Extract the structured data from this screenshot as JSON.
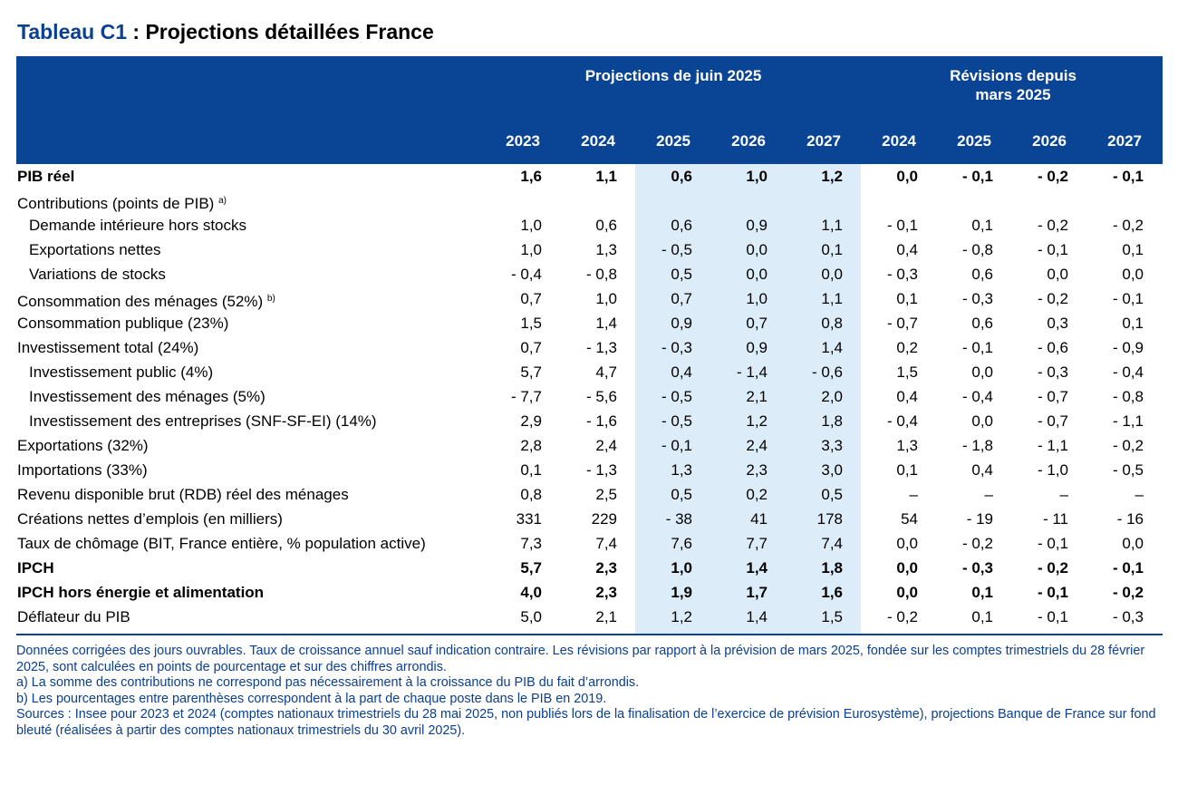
{
  "title": {
    "label": "Tableau C1",
    "separator": " : ",
    "text": "Projections détaillées France"
  },
  "header": {
    "group1": "Projections de juin 2025",
    "group2_line1": "Révisions depuis",
    "group2_line2": "mars 2025",
    "years": [
      "2023",
      "2024",
      "2025",
      "2026",
      "2027",
      "2024",
      "2025",
      "2026",
      "2027"
    ]
  },
  "rows": [
    {
      "label": "PIB réel",
      "note": "",
      "values": [
        "1,6",
        "1,1",
        "0,6",
        "1,0",
        "1,2",
        "0,0",
        "- 0,1",
        "- 0,2",
        "- 0,1"
      ]
    },
    {
      "label": "Contributions (points de PIB)",
      "note": "a)",
      "values": [
        "",
        "",
        "",
        "",
        "",
        "",
        "",
        "",
        ""
      ]
    },
    {
      "label": "Demande intérieure hors stocks",
      "note": "",
      "values": [
        "1,0",
        "0,6",
        "0,6",
        "0,9",
        "1,1",
        "- 0,1",
        "0,1",
        "- 0,2",
        "- 0,2"
      ]
    },
    {
      "label": "Exportations nettes",
      "note": "",
      "values": [
        "1,0",
        "1,3",
        "- 0,5",
        "0,0",
        "0,1",
        "0,4",
        "- 0,8",
        "- 0,1",
        "0,1"
      ]
    },
    {
      "label": "Variations de stocks",
      "note": "",
      "values": [
        "- 0,4",
        "- 0,8",
        "0,5",
        "0,0",
        "0,0",
        "- 0,3",
        "0,6",
        "0,0",
        "0,0"
      ]
    },
    {
      "label": "Consommation des ménages (52%)",
      "note": "b)",
      "values": [
        "0,7",
        "1,0",
        "0,7",
        "1,0",
        "1,1",
        "0,1",
        "- 0,3",
        "- 0,2",
        "- 0,1"
      ]
    },
    {
      "label": "Consommation publique (23%)",
      "note": "",
      "values": [
        "1,5",
        "1,4",
        "0,9",
        "0,7",
        "0,8",
        "- 0,7",
        "0,6",
        "0,3",
        "0,1"
      ]
    },
    {
      "label": "Investissement total (24%)",
      "note": "",
      "values": [
        "0,7",
        "- 1,3",
        "- 0,3",
        "0,9",
        "1,4",
        "0,2",
        "- 0,1",
        "- 0,6",
        "- 0,9"
      ]
    },
    {
      "label": "Investissement public (4%)",
      "note": "",
      "values": [
        "5,7",
        "4,7",
        "0,4",
        "- 1,4",
        "- 0,6",
        "1,5",
        "0,0",
        "- 0,3",
        "- 0,4"
      ]
    },
    {
      "label": "Investissement des ménages (5%)",
      "note": "",
      "values": [
        "- 7,7",
        "- 5,6",
        "- 0,5",
        "2,1",
        "2,0",
        "0,4",
        "- 0,4",
        "- 0,7",
        "- 0,8"
      ]
    },
    {
      "label": "Investissement des entreprises (SNF-SF-EI) (14%)",
      "note": "",
      "values": [
        "2,9",
        "- 1,6",
        "- 0,5",
        "1,2",
        "1,8",
        "- 0,4",
        "0,0",
        "- 0,7",
        "- 1,1"
      ]
    },
    {
      "label": "Exportations (32%)",
      "note": "",
      "values": [
        "2,8",
        "2,4",
        "- 0,1",
        "2,4",
        "3,3",
        "1,3",
        "- 1,8",
        "- 1,1",
        "- 0,2"
      ]
    },
    {
      "label": "Importations (33%)",
      "note": "",
      "values": [
        "0,1",
        "- 1,3",
        "1,3",
        "2,3",
        "3,0",
        "0,1",
        "0,4",
        "- 1,0",
        "- 0,5"
      ]
    },
    {
      "label": "Revenu disponible brut (RDB) réel des ménages",
      "note": "",
      "values": [
        "0,8",
        "2,5",
        "0,5",
        "0,2",
        "0,5",
        "–",
        "–",
        "–",
        "–"
      ]
    },
    {
      "label": "Créations nettes d’emplois (en milliers)",
      "note": "",
      "values": [
        "331",
        "229",
        "- 38",
        "41",
        "178",
        "54",
        "- 19",
        "- 11",
        "- 16"
      ]
    },
    {
      "label": "Taux de chômage (BIT, France entière, % population active)",
      "note": "",
      "values": [
        "7,3",
        "7,4",
        "7,6",
        "7,7",
        "7,4",
        "0,0",
        "- 0,2",
        "- 0,1",
        "0,0"
      ]
    },
    {
      "label": "IPCH",
      "note": "",
      "values": [
        "5,7",
        "2,3",
        "1,0",
        "1,4",
        "1,8",
        "0,0",
        "- 0,3",
        "- 0,2",
        "- 0,1"
      ]
    },
    {
      "label": "IPCH hors énergie et alimentation",
      "note": "",
      "values": [
        "4,0",
        "2,3",
        "1,9",
        "1,7",
        "1,6",
        "0,0",
        "0,1",
        "- 0,1",
        "- 0,2"
      ]
    },
    {
      "label": "Déflateur du PIB",
      "note": "",
      "values": [
        "5,0",
        "2,1",
        "1,2",
        "1,4",
        "1,5",
        "- 0,2",
        "0,1",
        "- 0,1",
        "- 0,3"
      ]
    }
  ],
  "notes": [
    "Données corrigées des jours ouvrables. Taux de croissance annuel sauf indication contraire. Les révisions par rapport à la prévision de mars 2025, fondée sur les comptes trimestriels du 28 février 2025, sont calculées en points de pourcentage et sur des chiffres arrondis.",
    "a)  La somme des contributions ne correspond pas nécessairement à la croissance du PIB du fait d’arrondis.",
    "b)  Les pourcentages entre parenthèses correspondent à la part de chaque poste dans le PIB en 2019.",
    "Sources : Insee pour 2023 et 2024 (comptes nationaux trimestriels du 28 mai 2025, non publiés lors de la finalisation de l’exercice de prévision Eurosystème), projections Banque de France sur fond bleuté (réalisées à partir des comptes nationaux trimestriels du 30 avril 2025)."
  ]
}
